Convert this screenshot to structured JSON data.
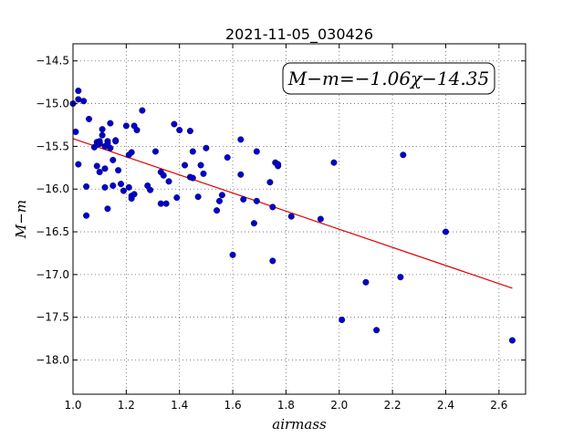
{
  "chart_data": {
    "type": "scatter",
    "title": "2021-11-05_030426",
    "xlabel": "airmass",
    "ylabel": "M−m",
    "xlim": [
      1.0,
      2.7
    ],
    "ylim": [
      -18.4,
      -14.3
    ],
    "xticks": [
      "1.0",
      "1.2",
      "1.4",
      "1.6",
      "1.8",
      "2.0",
      "2.2",
      "2.4",
      "2.6"
    ],
    "yticks": [
      "−14.5",
      "−15.0",
      "−15.5",
      "−16.0",
      "−16.5",
      "−17.0",
      "−17.5",
      "−18.0"
    ],
    "grid": true,
    "annotation": "M−m=−1.06χ−14.35",
    "colors": {
      "points": "#0000cc",
      "fit_line": "#dd0000"
    },
    "fit": {
      "slope": -1.06,
      "intercept": -14.35,
      "x_range": [
        1.0,
        2.65
      ]
    },
    "series": [
      {
        "x": [
          1.0,
          1.01,
          1.02,
          1.02,
          1.02,
          1.04,
          1.05,
          1.05,
          1.06,
          1.08,
          1.09,
          1.09,
          1.09,
          1.1,
          1.1,
          1.1,
          1.1,
          1.11,
          1.11,
          1.12,
          1.12,
          1.12,
          1.13,
          1.13,
          1.13,
          1.14,
          1.14,
          1.15,
          1.15,
          1.16,
          1.16,
          1.17,
          1.18,
          1.19,
          1.2,
          1.21,
          1.21,
          1.22,
          1.22,
          1.22,
          1.23,
          1.23,
          1.24,
          1.26,
          1.28,
          1.29,
          1.31,
          1.33,
          1.33,
          1.34,
          1.35,
          1.36,
          1.38,
          1.39,
          1.4,
          1.42,
          1.44,
          1.44,
          1.45,
          1.45,
          1.47,
          1.48,
          1.49,
          1.5,
          1.54,
          1.55,
          1.56,
          1.58,
          1.6,
          1.63,
          1.63,
          1.64,
          1.68,
          1.69,
          1.69,
          1.74,
          1.75,
          1.75,
          1.76,
          1.77,
          1.77,
          1.82,
          1.93,
          1.98,
          2.01,
          2.1,
          2.14,
          2.23,
          2.24,
          2.4,
          2.65
        ],
        "y": [
          -15.0,
          -15.33,
          -14.85,
          -14.95,
          -15.71,
          -14.97,
          -15.97,
          -16.31,
          -15.18,
          -15.51,
          -15.73,
          -15.45,
          -15.48,
          -15.8,
          -15.46,
          -15.47,
          -15.44,
          -15.37,
          -15.3,
          -15.76,
          -15.98,
          -15.5,
          -15.44,
          -15.47,
          -16.23,
          -15.52,
          -15.23,
          -15.66,
          -15.96,
          -15.44,
          -15.43,
          -15.78,
          -15.94,
          -16.02,
          -15.26,
          -15.6,
          -15.98,
          -15.57,
          -16.08,
          -16.11,
          -16.06,
          -15.26,
          -15.31,
          -15.08,
          -15.96,
          -16.01,
          -15.56,
          -15.8,
          -16.17,
          -15.84,
          -16.17,
          -15.91,
          -15.24,
          -16.1,
          -15.31,
          -15.72,
          -15.32,
          -15.86,
          -15.56,
          -15.87,
          -16.09,
          -15.72,
          -15.82,
          -15.52,
          -16.25,
          -16.14,
          -16.07,
          -15.63,
          -16.77,
          -15.42,
          -15.83,
          -16.12,
          -16.4,
          -15.56,
          -16.14,
          -15.92,
          -16.21,
          -16.84,
          -15.69,
          -15.73,
          -15.71,
          -16.32,
          -16.35,
          -15.69,
          -17.53,
          -17.09,
          -17.65,
          -17.03,
          -15.6,
          -16.5,
          -17.77
        ]
      }
    ]
  }
}
